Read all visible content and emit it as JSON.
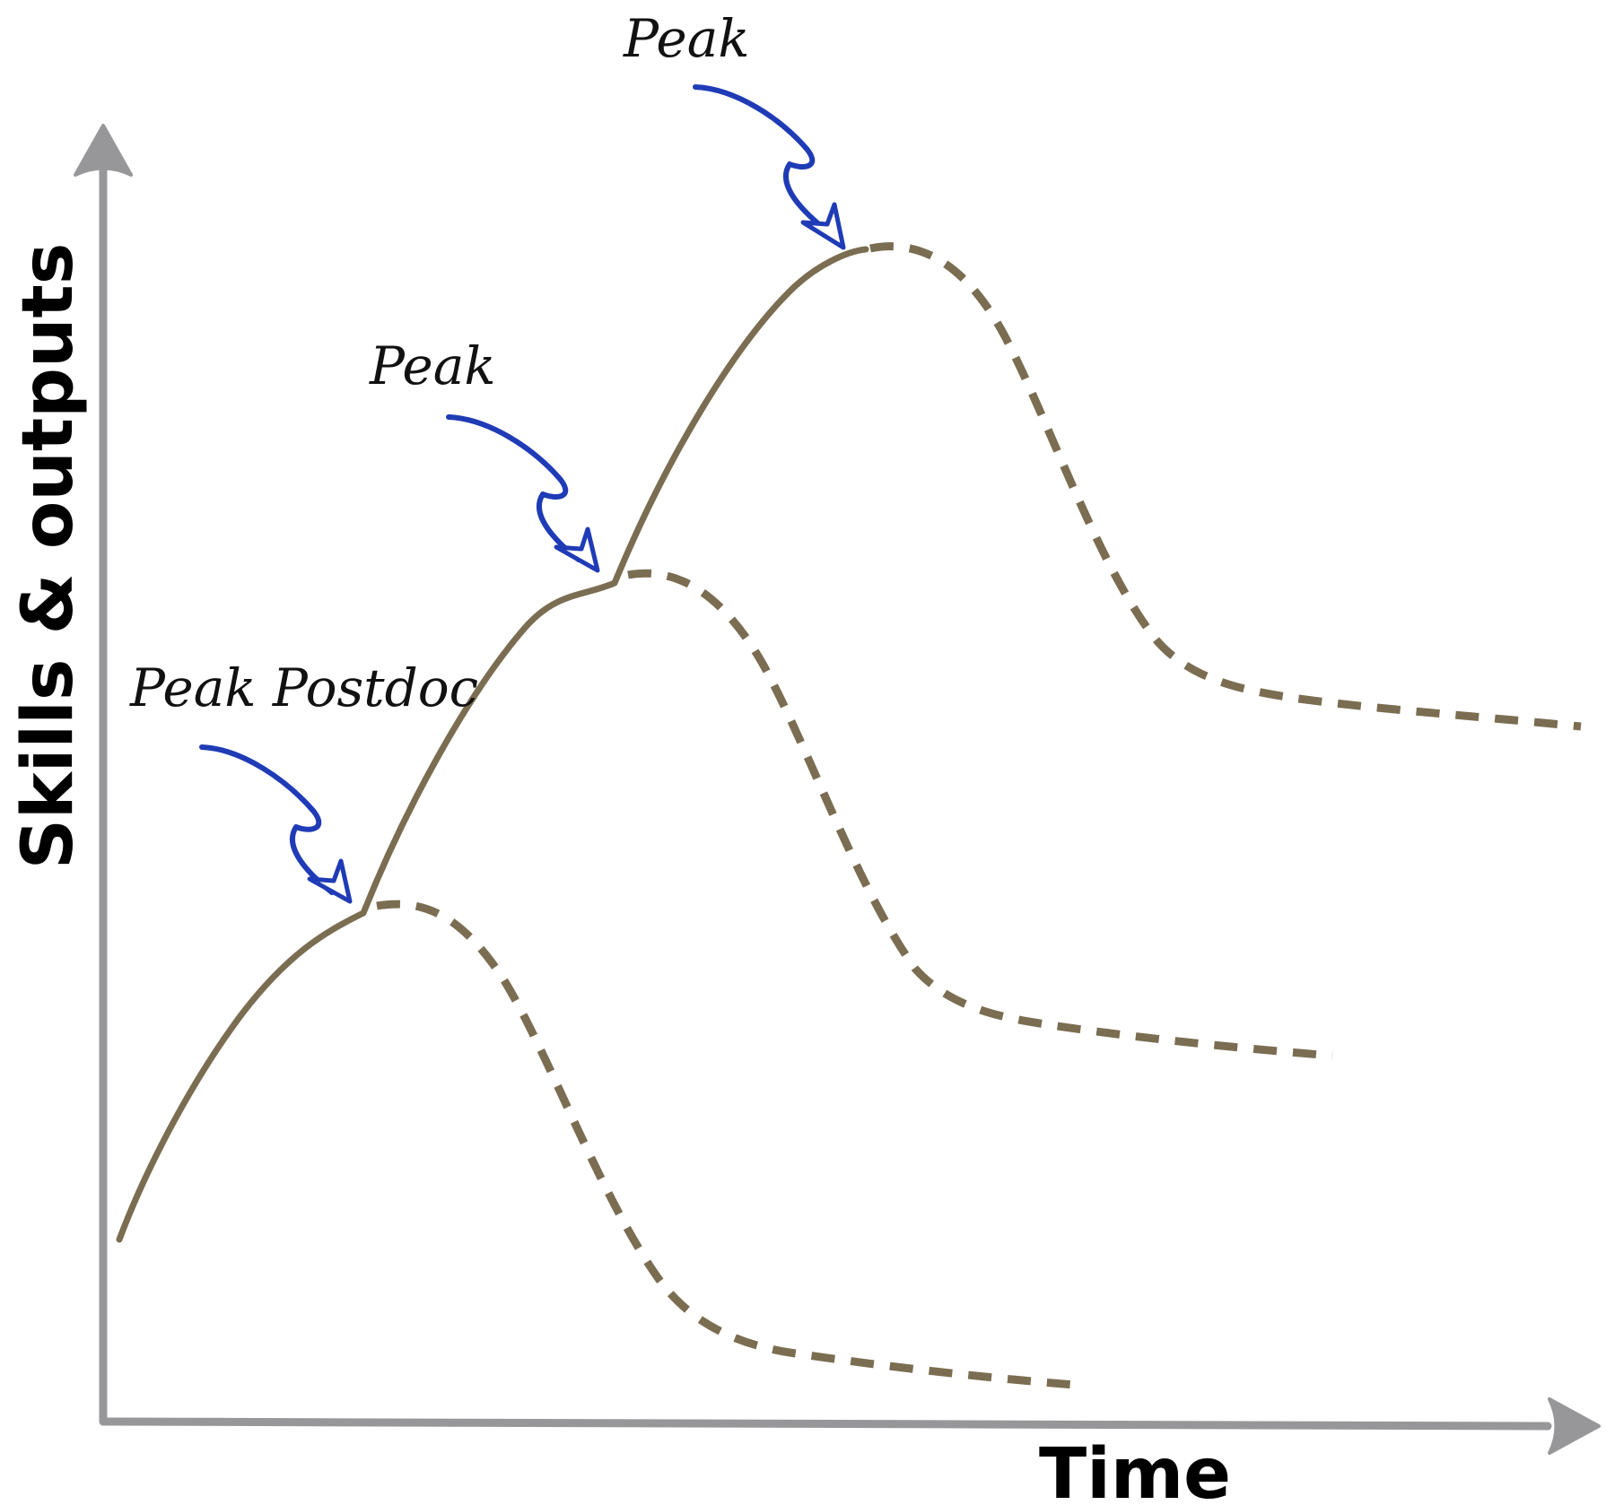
{
  "axes": {
    "x_label": "Time",
    "y_label": "Skills & outputs"
  },
  "annotations": [
    {
      "label": "Peak Postdoc"
    },
    {
      "label": "Peak"
    },
    {
      "label": "Peak"
    }
  ],
  "colors": {
    "axis": "#97979a",
    "curve": "#7b6d51",
    "pointer_arrow": "#1f3bb6",
    "text": "#000000"
  }
}
